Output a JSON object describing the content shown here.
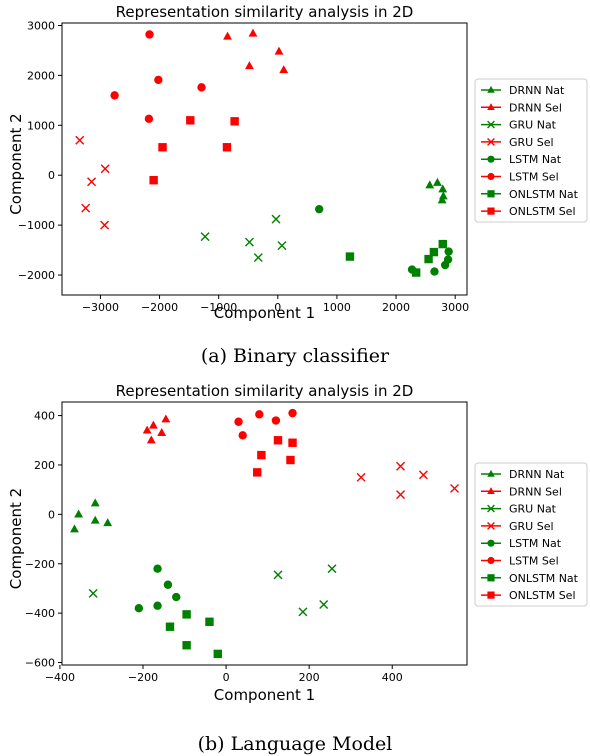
{
  "chart_data": [
    {
      "type": "scatter",
      "title": "Representation similarity analysis in 2D",
      "xlabel": "Component 1",
      "ylabel": "Component 2",
      "caption": "(a) Binary classifier",
      "xlim": [
        -3650,
        3200
      ],
      "ylim": [
        -2400,
        3050
      ],
      "xticks": [
        -3000,
        -2000,
        -1000,
        0,
        1000,
        2000,
        3000
      ],
      "yticks": [
        -2000,
        -1000,
        0,
        1000,
        2000,
        3000
      ],
      "legend_position": "right",
      "series": [
        {
          "name": "DRNN Nat",
          "marker": "triangle",
          "color": "#008000",
          "points": [
            [
              2570,
              -200
            ],
            [
              2700,
              -150
            ],
            [
              2790,
              -280
            ],
            [
              2800,
              -420
            ],
            [
              2780,
              -500
            ]
          ]
        },
        {
          "name": "DRNN Sel",
          "marker": "triangle",
          "color": "#ff0000",
          "points": [
            [
              -850,
              2780
            ],
            [
              -420,
              2840
            ],
            [
              20,
              2480
            ],
            [
              100,
              2110
            ],
            [
              -480,
              2190
            ]
          ]
        },
        {
          "name": "GRU Nat",
          "marker": "x",
          "color": "#008000",
          "points": [
            [
              -1230,
              -1230
            ],
            [
              -480,
              -1340
            ],
            [
              -330,
              -1650
            ],
            [
              -30,
              -880
            ],
            [
              70,
              -1410
            ]
          ]
        },
        {
          "name": "GRU Sel",
          "marker": "x",
          "color": "#ff0000",
          "points": [
            [
              -3350,
              700
            ],
            [
              -3150,
              -130
            ],
            [
              -2920,
              130
            ],
            [
              -3250,
              -660
            ],
            [
              -2930,
              -1000
            ]
          ]
        },
        {
          "name": "LSTM Nat",
          "marker": "circle",
          "color": "#008000",
          "points": [
            [
              700,
              -680
            ],
            [
              2270,
              -1890
            ],
            [
              2650,
              -1930
            ],
            [
              2830,
              -1800
            ],
            [
              2880,
              -1690
            ],
            [
              2890,
              -1530
            ]
          ]
        },
        {
          "name": "LSTM Sel",
          "marker": "circle",
          "color": "#ff0000",
          "points": [
            [
              -2170,
              2820
            ],
            [
              -2020,
              1910
            ],
            [
              -2760,
              1600
            ],
            [
              -1290,
              1760
            ],
            [
              -2180,
              1130
            ]
          ]
        },
        {
          "name": "ONLSTM Nat",
          "marker": "square",
          "color": "#008000",
          "points": [
            [
              1220,
              -1630
            ],
            [
              2340,
              -1950
            ],
            [
              2550,
              -1680
            ],
            [
              2640,
              -1540
            ],
            [
              2790,
              -1380
            ]
          ]
        },
        {
          "name": "ONLSTM Sel",
          "marker": "square",
          "color": "#ff0000",
          "points": [
            [
              -1480,
              1100
            ],
            [
              -1950,
              560
            ],
            [
              -860,
              560
            ],
            [
              -730,
              1080
            ],
            [
              -2100,
              -100
            ]
          ]
        }
      ]
    },
    {
      "type": "scatter",
      "title": "Representation similarity analysis in 2D",
      "xlabel": "Component 1",
      "ylabel": "Component 2",
      "caption": "(b) Language Model",
      "xlim": [
        -395,
        580
      ],
      "ylim": [
        -610,
        455
      ],
      "xticks": [
        -400,
        -200,
        0,
        200,
        400
      ],
      "yticks": [
        -600,
        -400,
        -200,
        0,
        200,
        400
      ],
      "legend_position": "right",
      "series": [
        {
          "name": "DRNN Nat",
          "marker": "triangle",
          "color": "#008000",
          "points": [
            [
              -355,
              0
            ],
            [
              -315,
              45
            ],
            [
              -315,
              -25
            ],
            [
              -285,
              -35
            ],
            [
              -365,
              -60
            ]
          ]
        },
        {
          "name": "DRNN Sel",
          "marker": "triangle",
          "color": "#ff0000",
          "points": [
            [
              -190,
              340
            ],
            [
              -175,
              360
            ],
            [
              -145,
              385
            ],
            [
              -155,
              330
            ],
            [
              -180,
              300
            ]
          ]
        },
        {
          "name": "GRU Nat",
          "marker": "x",
          "color": "#008000",
          "points": [
            [
              -320,
              -320
            ],
            [
              125,
              -245
            ],
            [
              185,
              -395
            ],
            [
              235,
              -365
            ],
            [
              255,
              -220
            ]
          ]
        },
        {
          "name": "GRU Sel",
          "marker": "x",
          "color": "#ff0000",
          "points": [
            [
              325,
              150
            ],
            [
              420,
              195
            ],
            [
              420,
              80
            ],
            [
              475,
              160
            ],
            [
              550,
              105
            ]
          ]
        },
        {
          "name": "LSTM Nat",
          "marker": "circle",
          "color": "#008000",
          "points": [
            [
              -165,
              -220
            ],
            [
              -140,
              -285
            ],
            [
              -120,
              -335
            ],
            [
              -165,
              -370
            ],
            [
              -210,
              -380
            ]
          ]
        },
        {
          "name": "LSTM Sel",
          "marker": "circle",
          "color": "#ff0000",
          "points": [
            [
              30,
              375
            ],
            [
              80,
              405
            ],
            [
              120,
              380
            ],
            [
              160,
              410
            ],
            [
              40,
              320
            ]
          ]
        },
        {
          "name": "ONLSTM Nat",
          "marker": "square",
          "color": "#008000",
          "points": [
            [
              -135,
              -455
            ],
            [
              -95,
              -405
            ],
            [
              -40,
              -435
            ],
            [
              -95,
              -530
            ],
            [
              -20,
              -565
            ]
          ]
        },
        {
          "name": "ONLSTM Sel",
          "marker": "square",
          "color": "#ff0000",
          "points": [
            [
              85,
              240
            ],
            [
              125,
              300
            ],
            [
              160,
              290
            ],
            [
              155,
              220
            ],
            [
              75,
              170
            ]
          ]
        }
      ]
    }
  ]
}
